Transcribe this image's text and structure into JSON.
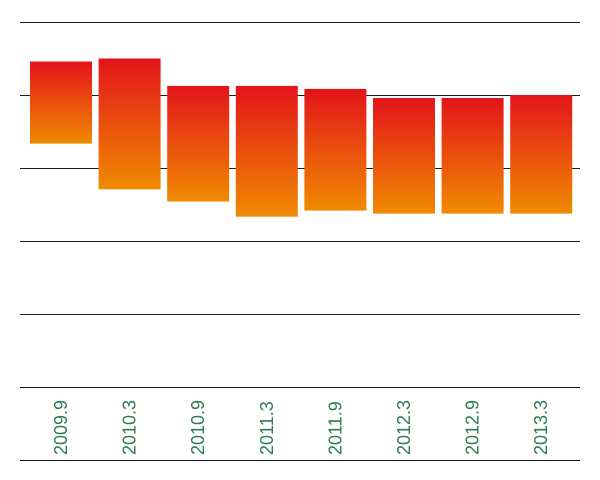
{
  "chart_data": {
    "type": "bar",
    "subtype": "floating-range",
    "title": "",
    "xlabel": "",
    "ylabel": "",
    "y_tick_labels_visible": false,
    "y_gridline_count": 6,
    "categories": [
      "2009.9",
      "2010.3",
      "2010.9",
      "2011.3",
      "2011.9",
      "2012.3",
      "2012.9",
      "2013.3"
    ],
    "ranges": [
      {
        "low": 4.0,
        "high": 5.35
      },
      {
        "low": 3.25,
        "high": 5.4
      },
      {
        "low": 3.05,
        "high": 4.95
      },
      {
        "low": 2.8,
        "high": 4.95
      },
      {
        "low": 2.9,
        "high": 4.9
      },
      {
        "low": 2.85,
        "high": 4.75
      },
      {
        "low": 2.85,
        "high": 4.75
      },
      {
        "low": 2.85,
        "high": 4.8
      }
    ],
    "ylim": [
      0,
      6
    ],
    "grid": true,
    "legend": "none",
    "colors": {
      "bar_gradient_top": "#e3141b",
      "bar_gradient_bottom": "#f08a00",
      "gridline": "#1a1a1a",
      "tick_label": "#2e7d4f"
    }
  }
}
